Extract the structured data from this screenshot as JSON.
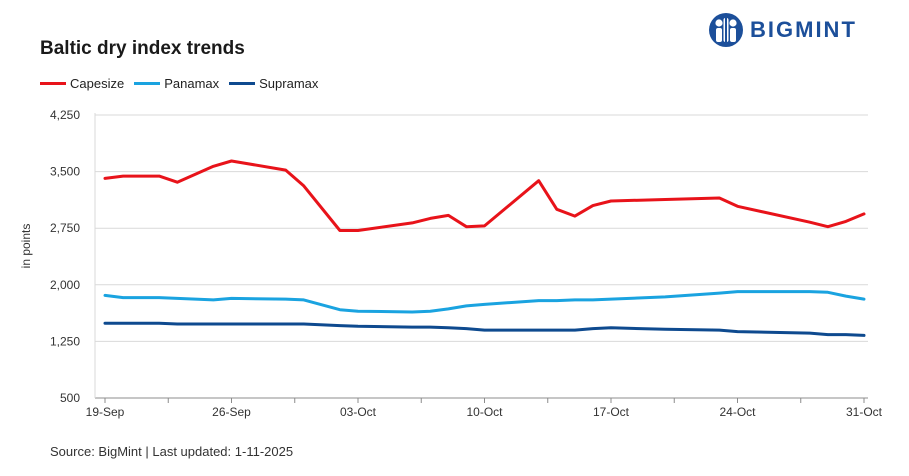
{
  "header": {
    "title": "Baltic dry index trends",
    "brand": "BIGMINT"
  },
  "colors": {
    "capesize": "#e8131a",
    "panamax": "#1aa3e0",
    "supramax": "#0e4a8f",
    "grid": "#d9d9d9",
    "brand": "#1c4f9a"
  },
  "source_text": "Source: BigMint | Last updated: 1-11-2025",
  "chart_data": {
    "type": "line",
    "title": "Baltic dry index trends",
    "xlabel": "",
    "ylabel": "in points",
    "ylim": [
      500,
      4250
    ],
    "yticks": [
      500,
      1250,
      2000,
      2750,
      3500,
      4250
    ],
    "ytick_labels": [
      "500",
      "1,250",
      "2,000",
      "2,750",
      "3,500",
      "4,250"
    ],
    "grid": true,
    "legend_position": "top-left",
    "x_tick_labels": [
      "19-Sep",
      "26-Sep",
      "03-Oct",
      "10-Oct",
      "17-Oct",
      "24-Oct",
      "31-Oct"
    ],
    "x_tick_days": [
      0,
      7,
      14,
      21,
      28,
      35,
      42
    ],
    "x_days": [
      0,
      1,
      2,
      3,
      4,
      6,
      7,
      10,
      11,
      13,
      14,
      17,
      18,
      19,
      20,
      21,
      24,
      25,
      26,
      27,
      28,
      31,
      34,
      35,
      39,
      40,
      41,
      42
    ],
    "series": [
      {
        "name": "Capesize",
        "color": "#e8131a",
        "values": [
          3410,
          3440,
          3440,
          3440,
          3360,
          3570,
          3640,
          3520,
          3310,
          2720,
          2720,
          2820,
          2880,
          2920,
          2770,
          2780,
          3380,
          3000,
          2910,
          3050,
          3110,
          3130,
          3150,
          3040,
          2830,
          2770,
          2840,
          2940
        ]
      },
      {
        "name": "Panamax",
        "color": "#1aa3e0",
        "values": [
          1860,
          1830,
          1830,
          1830,
          1820,
          1800,
          1820,
          1810,
          1800,
          1670,
          1650,
          1640,
          1650,
          1680,
          1720,
          1740,
          1790,
          1790,
          1800,
          1800,
          1810,
          1840,
          1890,
          1910,
          1910,
          1900,
          1850,
          1810
        ]
      },
      {
        "name": "Supramax",
        "color": "#0e4a8f",
        "values": [
          1490,
          1490,
          1490,
          1490,
          1480,
          1480,
          1480,
          1480,
          1480,
          1460,
          1450,
          1440,
          1440,
          1430,
          1420,
          1400,
          1400,
          1400,
          1400,
          1420,
          1430,
          1410,
          1400,
          1380,
          1360,
          1340,
          1340,
          1330
        ]
      }
    ]
  }
}
